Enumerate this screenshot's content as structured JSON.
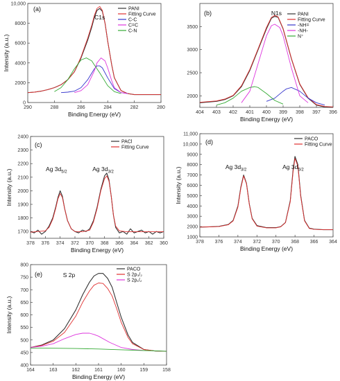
{
  "chart_data": [
    {
      "type": "line",
      "panel": "(a)",
      "peak_label": "C1s",
      "xlabel": "Binding Energy (eV)",
      "ylabel": "Intensity (a.u.)",
      "xlim": [
        290,
        280
      ],
      "ylim": [
        0,
        10000
      ],
      "x_ticks": [
        "290",
        "288",
        "286",
        "284",
        "282",
        "280"
      ],
      "y_ticks": [
        "0",
        "2000",
        "4000",
        "6000",
        "8000",
        "10,000"
      ],
      "legend": {
        "position": "top-right"
      },
      "series": [
        {
          "name": "PANI",
          "color": "#333333",
          "x": [
            290,
            289.5,
            289,
            288.5,
            288,
            287.5,
            287,
            286.5,
            286,
            285.5,
            285.2,
            285,
            284.8,
            284.6,
            284.4,
            284.2,
            284,
            283.7,
            283.5,
            283,
            282.5,
            282,
            281,
            280
          ],
          "y": [
            1000,
            1050,
            1150,
            1300,
            1500,
            1800,
            2300,
            3100,
            4500,
            6300,
            7600,
            8600,
            9300,
            9500,
            9200,
            8000,
            6200,
            3800,
            2500,
            1200,
            900,
            800,
            800,
            800
          ]
        },
        {
          "name": "Fitting Curve",
          "color": "#e03030",
          "x": [
            290,
            289.5,
            289,
            288.5,
            288,
            287.5,
            287,
            286.5,
            286,
            285.5,
            285.2,
            285,
            284.8,
            284.6,
            284.4,
            284.2,
            284,
            283.7,
            283.5,
            283,
            282.5,
            282,
            281,
            280
          ],
          "y": [
            1000,
            1050,
            1150,
            1300,
            1500,
            1800,
            2300,
            3100,
            4600,
            6500,
            7800,
            8800,
            9500,
            9700,
            9300,
            8000,
            6200,
            3800,
            2500,
            1200,
            900,
            800,
            800,
            800
          ]
        },
        {
          "name": "C-C",
          "color": "#3333cc",
          "x": [
            287.5,
            287,
            286.5,
            286,
            285.5,
            285,
            284.8,
            284.6,
            284.4,
            284,
            283.5,
            283,
            282.5
          ],
          "y": [
            1000,
            1050,
            1150,
            1500,
            2300,
            3400,
            3700,
            3700,
            3500,
            2500,
            1400,
            1000,
            900
          ]
        },
        {
          "name": "C=C",
          "color": "#dd33dd",
          "x": [
            286.5,
            286,
            285.5,
            285,
            284.8,
            284.5,
            284.2,
            284,
            283.7,
            283.5,
            283,
            282.5
          ],
          "y": [
            1000,
            1200,
            1800,
            3200,
            4000,
            4500,
            4200,
            3500,
            2200,
            1500,
            1000,
            900
          ]
        },
        {
          "name": "C-N",
          "color": "#33aa33",
          "x": [
            288,
            287.5,
            287,
            286.5,
            286,
            285.6,
            285.2,
            285,
            284.6,
            284,
            283.5,
            283
          ],
          "y": [
            1100,
            1500,
            2300,
            3400,
            4300,
            4500,
            4200,
            3800,
            3000,
            1700,
            1100,
            900
          ]
        }
      ]
    },
    {
      "type": "line",
      "panel": "(b)",
      "peak_label": "N1s",
      "xlabel": "Binding Energy (eV)",
      "ylabel": "",
      "xlim": [
        404,
        396
      ],
      "ylim": [
        1750,
        4000
      ],
      "x_ticks": [
        "404",
        "403",
        "402",
        "401",
        "400",
        "399",
        "398",
        "397",
        "396"
      ],
      "y_ticks": [
        "2000",
        "2500",
        "3000",
        "3500"
      ],
      "legend": {
        "position": "top-right"
      },
      "series": [
        {
          "name": "PANI",
          "color": "#333333",
          "x": [
            404,
            403,
            402.5,
            402,
            401.5,
            401,
            400.5,
            400,
            399.7,
            399.5,
            399.3,
            399,
            398.5,
            398,
            397.5,
            397,
            396.5,
            396
          ],
          "y": [
            1850,
            1880,
            1920,
            2000,
            2200,
            2550,
            3000,
            3450,
            3680,
            3720,
            3700,
            3450,
            2800,
            2250,
            1950,
            1800,
            1760,
            1750
          ]
        },
        {
          "name": "Fitting Curve",
          "color": "#e03030",
          "x": [
            404,
            403,
            402.5,
            402,
            401.5,
            401,
            400.5,
            400,
            399.7,
            399.5,
            399.3,
            399,
            398.5,
            398,
            397.5,
            397,
            396.5,
            396
          ],
          "y": [
            1860,
            1890,
            1930,
            2010,
            2220,
            2570,
            3020,
            3480,
            3700,
            3740,
            3710,
            3460,
            2810,
            2260,
            1960,
            1810,
            1770,
            1760
          ]
        },
        {
          "name": "-NH=",
          "color": "#3333cc",
          "x": [
            400,
            399.5,
            399,
            398.8,
            398.5,
            398,
            397.5,
            397,
            396.5
          ],
          "y": [
            1880,
            1950,
            2100,
            2150,
            2180,
            2100,
            1950,
            1850,
            1800
          ]
        },
        {
          "name": "-NH-",
          "color": "#dd33dd",
          "x": [
            401.5,
            401,
            400.5,
            400,
            399.7,
            399.5,
            399.2,
            399,
            398.5,
            398,
            397.5
          ],
          "y": [
            1850,
            2100,
            2700,
            3300,
            3520,
            3550,
            3480,
            3300,
            2600,
            2000,
            1850
          ]
        },
        {
          "name": "N⁺",
          "color": "#33aa33",
          "x": [
            403,
            402.5,
            402,
            401.5,
            401,
            400.7,
            400.5,
            400,
            399.5,
            399
          ],
          "y": [
            1800,
            1850,
            1950,
            2100,
            2180,
            2200,
            2180,
            2050,
            1900,
            1820
          ]
        }
      ]
    },
    {
      "type": "line",
      "panel": "(c)",
      "peak_labels": [
        {
          "text": "Ag 3d",
          "sub": "5/2",
          "x": 374.5
        },
        {
          "text": "Ag 3d",
          "sub": "3/2",
          "x": 368.2
        }
      ],
      "xlabel": "Binding Energy (eV)",
      "ylabel": "Intensity (a.u.)",
      "xlim": [
        378,
        360
      ],
      "ylim": [
        1650,
        2400
      ],
      "x_ticks": [
        "378",
        "376",
        "374",
        "372",
        "370",
        "368",
        "366",
        "364",
        "362",
        "360"
      ],
      "y_ticks": [
        "1700",
        "1800",
        "1900",
        "2000",
        "2100",
        "2200",
        "2300",
        "2400"
      ],
      "legend": {
        "position": "top-right"
      },
      "series": [
        {
          "name": "PACl",
          "color": "#333333",
          "x": [
            378,
            377.5,
            377,
            376.5,
            376,
            375.5,
            375,
            374.6,
            374.3,
            374,
            373.7,
            373.4,
            373,
            372.5,
            372,
            371.5,
            371,
            370.5,
            370,
            369.5,
            369,
            368.5,
            368,
            367.7,
            367.4,
            367.1,
            366.8,
            366.5,
            366,
            365.5,
            365,
            364.5,
            364,
            363.5,
            363,
            362.5,
            362,
            361.5,
            361,
            360.5,
            360
          ],
          "y": [
            1700,
            1690,
            1710,
            1680,
            1700,
            1740,
            1800,
            1880,
            1950,
            2000,
            1960,
            1870,
            1780,
            1720,
            1700,
            1690,
            1710,
            1700,
            1720,
            1780,
            1880,
            2010,
            2110,
            2130,
            2080,
            1960,
            1820,
            1730,
            1690,
            1700,
            1680,
            1720,
            1690,
            1700,
            1710,
            1690,
            1700,
            1680,
            1700,
            1690,
            1700
          ]
        },
        {
          "name": "Fitting Curve",
          "color": "#e03030",
          "x": [
            378,
            377,
            376,
            375.5,
            375,
            374.6,
            374.3,
            374,
            373.7,
            373.4,
            373,
            372.5,
            372,
            371,
            370,
            369.5,
            369,
            368.5,
            368,
            367.7,
            367.4,
            367.1,
            366.8,
            366.5,
            366,
            365,
            364,
            362,
            360
          ],
          "y": [
            1695,
            1700,
            1705,
            1730,
            1790,
            1870,
            1940,
            1980,
            1950,
            1870,
            1780,
            1720,
            1700,
            1698,
            1710,
            1770,
            1870,
            2000,
            2090,
            2110,
            2070,
            1960,
            1820,
            1740,
            1705,
            1698,
            1698,
            1698,
            1698
          ]
        }
      ]
    },
    {
      "type": "line",
      "panel": "(d)",
      "peak_labels": [
        {
          "text": "Ag 3d",
          "sub": "3/2",
          "x": 374.2
        },
        {
          "text": "Ag 3d",
          "sub": "5/2",
          "x": 368.2
        }
      ],
      "xlabel": "Binding Energy (eV)",
      "ylabel": "Intensity (a.u.)",
      "xlim": [
        378,
        364
      ],
      "ylim": [
        1000,
        11000
      ],
      "x_ticks": [
        "378",
        "376",
        "374",
        "372",
        "370",
        "368",
        "366",
        "364"
      ],
      "y_ticks": [
        "1000",
        "2000",
        "3000",
        "4000",
        "5000",
        "6000",
        "7000",
        "8000",
        "9000",
        "10,000",
        "11,000"
      ],
      "legend": {
        "position": "top-right"
      },
      "series": [
        {
          "name": "PACO",
          "color": "#333333",
          "x": [
            378,
            377,
            376,
            375,
            374.5,
            374,
            373.7,
            373.4,
            373.1,
            372.8,
            372.5,
            372,
            371,
            370,
            369.5,
            369,
            368.5,
            368.2,
            368,
            367.7,
            367.4,
            367,
            366.5,
            366,
            365,
            364
          ],
          "y": [
            1950,
            1980,
            2020,
            2200,
            2600,
            4000,
            5800,
            7000,
            6200,
            4200,
            2800,
            2100,
            1900,
            1900,
            2000,
            2400,
            4500,
            7500,
            8800,
            8000,
            5000,
            2600,
            1850,
            1750,
            1700,
            1700
          ]
        },
        {
          "name": "Fitting Curve",
          "color": "#e03030",
          "x": [
            378,
            377,
            376,
            375,
            374.5,
            374,
            373.7,
            373.4,
            373.1,
            372.8,
            372.5,
            372,
            371,
            370,
            369.5,
            369,
            368.5,
            368.2,
            368,
            367.7,
            367.4,
            367,
            366.5,
            366,
            365,
            364
          ],
          "y": [
            1950,
            1970,
            2000,
            2180,
            2550,
            3900,
            5700,
            6900,
            6150,
            4150,
            2750,
            2050,
            1880,
            1880,
            1980,
            2380,
            4400,
            7300,
            8600,
            7850,
            4900,
            2550,
            1820,
            1730,
            1700,
            1700
          ]
        }
      ]
    },
    {
      "type": "line",
      "panel": "(e)",
      "peak_label": "S 2p",
      "xlabel": "Binding Energy (eV)",
      "ylabel": "Intensity (a.u.)",
      "xlim": [
        164,
        158
      ],
      "ylim": [
        400,
        800
      ],
      "x_ticks": [
        "164",
        "163",
        "162",
        "161",
        "160",
        "159",
        "158"
      ],
      "y_ticks": [
        "400",
        "450",
        "500",
        "550",
        "600",
        "650",
        "700",
        "750",
        "800"
      ],
      "legend": {
        "position": "top-right"
      },
      "series": [
        {
          "name": "PACO",
          "color": "#333333",
          "x": [
            164,
            163.5,
            163,
            162.5,
            162,
            161.7,
            161.4,
            161.2,
            161,
            160.8,
            160.6,
            160.4,
            160.2,
            160,
            159.7,
            159.5,
            159,
            158.5,
            158
          ],
          "y": [
            470,
            480,
            500,
            545,
            620,
            680,
            730,
            755,
            765,
            765,
            745,
            710,
            650,
            590,
            520,
            490,
            462,
            456,
            455
          ]
        },
        {
          "name": "S 2p₃/₂",
          "color": "#e03030",
          "x": [
            164,
            163.5,
            163,
            162.5,
            162,
            161.7,
            161.4,
            161.2,
            161,
            160.8,
            160.6,
            160.4,
            160.2,
            160,
            159.7,
            159.5,
            159,
            158.5,
            158
          ],
          "y": [
            470,
            478,
            495,
            530,
            595,
            650,
            695,
            718,
            727,
            725,
            705,
            675,
            625,
            570,
            510,
            485,
            462,
            456,
            455
          ]
        },
        {
          "name": "S 2p₁/₂",
          "color": "#dd33dd",
          "x": [
            164,
            163.5,
            163,
            162.5,
            162,
            161.7,
            161.4,
            161.2,
            161,
            160.5,
            160,
            159.5,
            159
          ],
          "y": [
            470,
            475,
            485,
            505,
            522,
            527,
            527,
            522,
            515,
            490,
            470,
            462,
            458
          ]
        },
        {
          "name": "",
          "color": "#33aa33",
          "x": [
            164,
            163,
            162,
            161,
            160,
            159,
            158
          ],
          "y": [
            468,
            467,
            466,
            464,
            461,
            458,
            455
          ]
        }
      ]
    }
  ]
}
